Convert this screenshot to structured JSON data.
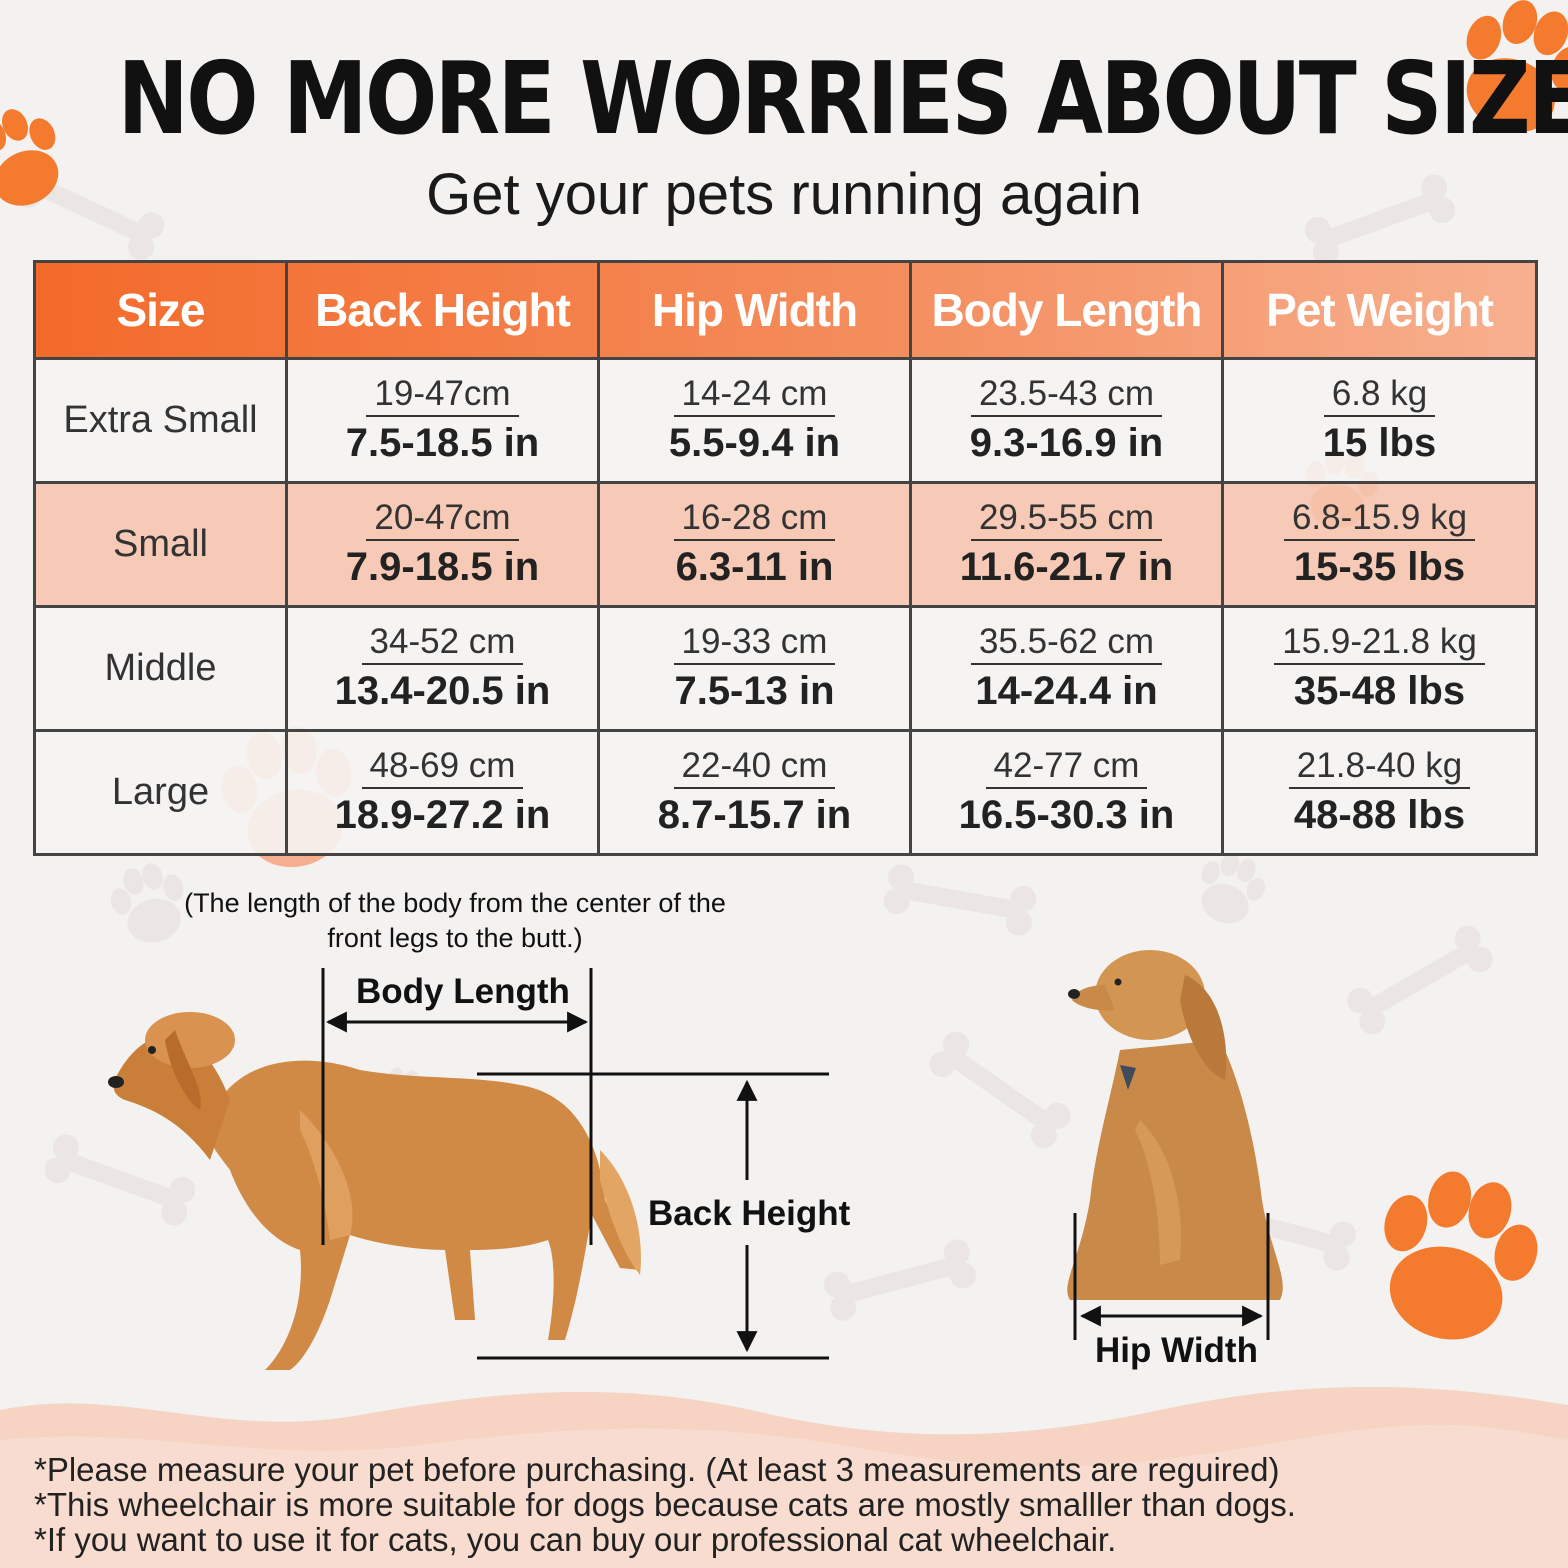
{
  "title": "NO MORE WORRIES ABOUT SIZE",
  "subtitle": "Get your pets running again",
  "table": {
    "headers": [
      "Size",
      "Back Height",
      "Hip Width",
      "Body Length",
      "Pet Weight"
    ],
    "rows": [
      {
        "size": "Extra Small",
        "back_height": {
          "metric": "19-47cm",
          "imperial": "7.5-18.5 in"
        },
        "hip_width": {
          "metric": "14-24 cm",
          "imperial": "5.5-9.4 in"
        },
        "body_length": {
          "metric": "23.5-43 cm",
          "imperial": "9.3-16.9 in"
        },
        "pet_weight": {
          "metric": "6.8 kg",
          "imperial": "15 lbs"
        }
      },
      {
        "size": "Small",
        "back_height": {
          "metric": "20-47cm",
          "imperial": "7.9-18.5 in"
        },
        "hip_width": {
          "metric": "16-28 cm",
          "imperial": "6.3-11 in"
        },
        "body_length": {
          "metric": "29.5-55 cm",
          "imperial": "11.6-21.7 in"
        },
        "pet_weight": {
          "metric": "6.8-15.9 kg",
          "imperial": "15-35 lbs"
        }
      },
      {
        "size": "Middle",
        "back_height": {
          "metric": "34-52 cm",
          "imperial": "13.4-20.5 in"
        },
        "hip_width": {
          "metric": "19-33 cm",
          "imperial": "7.5-13 in"
        },
        "body_length": {
          "metric": "35.5-62 cm",
          "imperial": "14-24.4 in"
        },
        "pet_weight": {
          "metric": "15.9-21.8 kg",
          "imperial": "35-48 lbs"
        }
      },
      {
        "size": "Large",
        "back_height": {
          "metric": "48-69 cm",
          "imperial": "18.9-27.2 in"
        },
        "hip_width": {
          "metric": "22-40 cm",
          "imperial": "8.7-15.7 in"
        },
        "body_length": {
          "metric": "42-77 cm",
          "imperial": "16.5-30.3 in"
        },
        "pet_weight": {
          "metric": "21.8-40 kg",
          "imperial": "48-88 lbs"
        }
      }
    ]
  },
  "diagram": {
    "note": "(The length of the body from the center of the front legs to the butt.)",
    "body_length_label": "Body Length",
    "back_height_label": "Back Height",
    "hip_width_label": "Hip Width"
  },
  "footer": [
    "*Please measure your pet before purchasing. (At least 3 measurements are reguired)",
    "*This wheelchair is more suitable for dogs because cats are mostly smalller than dogs.",
    "*If you want to use it for cats, you can buy our professional cat wheelchair."
  ],
  "colors": {
    "accent": "#f36a2a",
    "accent_light": "#f7b08f",
    "row_tint": "#f6c4ad"
  },
  "icons": [
    "paw-icon",
    "bone-icon",
    "standing-dog-illustration",
    "sitting-dog-illustration"
  ]
}
